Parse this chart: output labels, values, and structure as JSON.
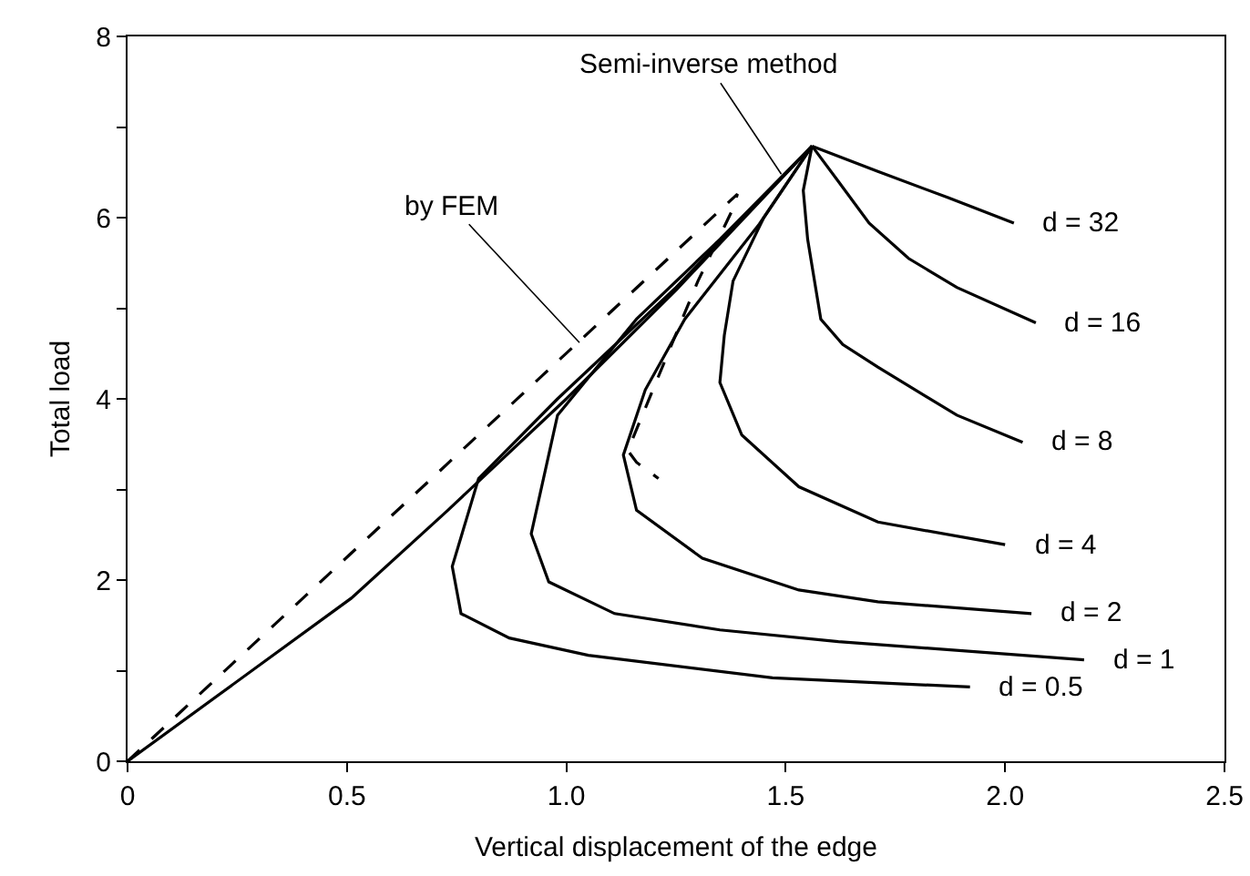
{
  "chart_data": {
    "type": "line",
    "xlabel": "Vertical displacement of the edge",
    "ylabel": "Total load",
    "xlim": [
      0,
      2.5
    ],
    "xticks": [
      0,
      0.5,
      {
        "value": 1,
        "label": "1.0"
      },
      1.5,
      {
        "value": 2,
        "label": "2.0"
      },
      2.5
    ],
    "ylim": [
      0,
      8
    ],
    "yticks": [
      0,
      {
        "value": 1,
        "label": null
      },
      2,
      {
        "value": 3,
        "label": null
      },
      4,
      {
        "value": 5,
        "label": null
      },
      6,
      {
        "value": 7,
        "label": null
      },
      8
    ],
    "grid": false,
    "legend": false,
    "marker": "none",
    "line_style": "solid",
    "series": [
      {
        "color": "#000000",
        "x": [
          0,
          0.51,
          0.73,
          1.0,
          1.25,
          1.56
        ],
        "values": [
          0,
          1.8,
          2.77,
          4.0,
          5.2,
          6.79
        ]
      },
      {
        "name": "d = 32",
        "color": "#000000",
        "x": [
          1.56,
          1.71,
          1.87,
          2.02
        ],
        "values": [
          6.79,
          6.51,
          6.22,
          5.94
        ]
      },
      {
        "name": "d = 16",
        "color": "#000000",
        "x": [
          1.56,
          1.62,
          1.69,
          1.78,
          1.89,
          2.07
        ],
        "values": [
          6.79,
          6.4,
          5.94,
          5.55,
          5.23,
          4.84
        ]
      },
      {
        "name": "d = 8",
        "color": "#000000",
        "x": [
          1.56,
          1.54,
          1.55,
          1.58,
          1.63,
          1.71,
          1.89,
          2.04
        ],
        "values": [
          6.79,
          6.3,
          5.76,
          4.88,
          4.6,
          4.35,
          3.82,
          3.52
        ]
      },
      {
        "name": "d = 4",
        "color": "#000000",
        "x": [
          1.56,
          1.45,
          1.38,
          1.36,
          1.35,
          1.4,
          1.53,
          1.71,
          2.0
        ],
        "values": [
          6.79,
          6.0,
          5.3,
          4.7,
          4.18,
          3.6,
          3.03,
          2.64,
          2.39
        ]
      },
      {
        "name": "d = 2",
        "color": "#000000",
        "x": [
          1.56,
          1.44,
          1.27,
          1.18,
          1.13,
          1.16,
          1.31,
          1.53,
          1.71,
          2.06
        ],
        "values": [
          6.79,
          5.93,
          4.88,
          4.1,
          3.38,
          2.77,
          2.24,
          1.89,
          1.76,
          1.63
        ]
      },
      {
        "name": "d = 1",
        "color": "#000000",
        "x": [
          1.56,
          1.35,
          1.16,
          0.98,
          0.92,
          0.96,
          1.11,
          1.35,
          1.62,
          2.18
        ],
        "values": [
          6.79,
          5.76,
          4.88,
          3.82,
          2.51,
          1.98,
          1.63,
          1.45,
          1.32,
          1.12
        ]
      },
      {
        "name": "d = 0.5",
        "color": "#000000",
        "x": [
          1.56,
          1.25,
          0.98,
          0.8,
          0.74,
          0.76,
          0.87,
          1.05,
          1.47,
          1.92
        ],
        "values": [
          6.79,
          5.23,
          4.0,
          3.12,
          2.15,
          1.63,
          1.36,
          1.17,
          0.92,
          0.82
        ]
      },
      {
        "color": "#000000",
        "line_style": "dashed",
        "x": [
          0,
          1.39,
          1.38,
          1.3,
          1.14,
          1.16,
          1.21
        ],
        "values": [
          0,
          6.26,
          6.1,
          5.3,
          3.43,
          3.3,
          3.12
        ]
      }
    ],
    "annotations": [
      {
        "text": "Semi-inverse method",
        "x": 1.49,
        "y": 6.48
      },
      {
        "text": "by FEM",
        "x": 1.03,
        "y": 4.62
      }
    ]
  }
}
